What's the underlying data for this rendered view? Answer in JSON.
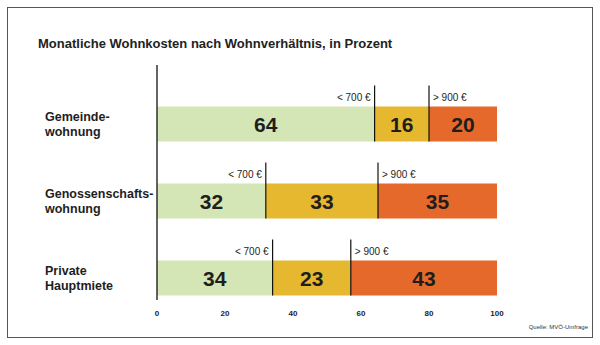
{
  "chart_data": {
    "type": "bar",
    "orientation": "horizontal",
    "stacked": true,
    "data_labels": true,
    "grid": false,
    "title": "Monatliche Wohnkosten nach Wohnverhältnis, in Prozent",
    "source": "Quelle: MVÖ-Umfrage",
    "categories": [
      "Gemeinde-\nwohnung",
      "Genossenschafts-\nwohnung",
      "Private\nHauptmiete"
    ],
    "series": [
      {
        "name": "< 700 €",
        "color": "#d5e6b6",
        "values": [
          64,
          32,
          34
        ]
      },
      {
        "color": "#e6b82f",
        "values": [
          16,
          33,
          23
        ]
      },
      {
        "name": "> 900 €",
        "color": "#e5692b",
        "values": [
          20,
          35,
          43
        ]
      }
    ],
    "xlim": [
      0,
      100
    ],
    "xticks": [
      0,
      20,
      40,
      60,
      80,
      100
    ]
  }
}
